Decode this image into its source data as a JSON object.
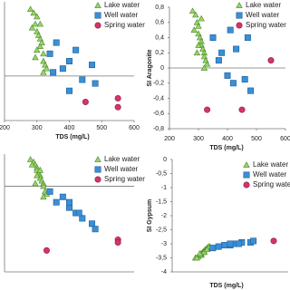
{
  "chart_data": [
    {
      "type": "scatter",
      "x_label": "TDS (mg/L)",
      "xlim": [
        200,
        600
      ],
      "xticks": [
        200,
        300,
        400,
        500,
        600
      ],
      "ylim": [
        -0.6,
        1.0
      ],
      "series": [
        {
          "name": "Lake water",
          "color": "#9bd36b",
          "x": [
            280,
            290,
            295,
            300,
            300,
            305,
            310,
            310,
            315,
            320,
            320,
            325,
            330,
            300,
            285,
            310,
            295,
            320
          ],
          "values": [
            0.9,
            0.85,
            0.7,
            0.8,
            0.6,
            0.55,
            0.5,
            0.4,
            0.45,
            0.3,
            0.2,
            0.15,
            0.1,
            0.35,
            0.65,
            0.7,
            0.25,
            0.05
          ]
        },
        {
          "name": "Well water",
          "color": "#3a8fd6",
          "x": [
            340,
            360,
            380,
            400,
            420,
            440,
            470,
            480,
            400,
            350
          ],
          "values": [
            0.3,
            0.45,
            0.1,
            0.2,
            0.35,
            -0.05,
            0.15,
            -0.1,
            -0.2,
            0.05
          ]
        },
        {
          "name": "Spring water",
          "color": "#d6336c",
          "x": [
            450,
            550,
            550
          ],
          "values": [
            -0.35,
            -0.3,
            -0.42
          ]
        }
      ]
    },
    {
      "type": "scatter",
      "x_label": "TDS (mg/L)",
      "y_label": "SI Aragonite",
      "xlim": [
        200,
        600
      ],
      "xticks": [
        200,
        300,
        400,
        500,
        600
      ],
      "ylim": [
        -0.8,
        0.8
      ],
      "yticks": [
        {
          "value": 0.8,
          "label": "0,8"
        },
        {
          "value": 0.6,
          "label": "0,6"
        },
        {
          "value": 0.4,
          "label": "0,4"
        },
        {
          "value": 0.2,
          "label": "0,2"
        },
        0,
        {
          "value": -0.2,
          "label": "-0,2"
        },
        {
          "value": -0.4,
          "label": "-0,4"
        },
        {
          "value": -0.6,
          "label": "-0,6"
        },
        {
          "value": -0.8,
          "label": "-0,8"
        }
      ],
      "series": [
        {
          "name": "Lake water",
          "color": "#9bd36b",
          "x": [
            280,
            290,
            295,
            300,
            300,
            305,
            310,
            310,
            315,
            320,
            320,
            325,
            330,
            300,
            285,
            310,
            295,
            320
          ],
          "values": [
            0.75,
            0.7,
            0.6,
            0.55,
            0.45,
            0.4,
            0.35,
            0.3,
            0.25,
            0.2,
            0.15,
            0.1,
            0.05,
            0.3,
            0.5,
            0.65,
            0.2,
            0.0
          ]
        },
        {
          "name": "Well water",
          "color": "#3a8fd6",
          "x": [
            350,
            380,
            410,
            430,
            470,
            400,
            420,
            460,
            480,
            370
          ],
          "values": [
            0.4,
            0.2,
            0.5,
            0.25,
            0.4,
            -0.1,
            -0.2,
            -0.15,
            -0.3,
            0.1
          ]
        },
        {
          "name": "Spring water",
          "color": "#d6336c",
          "x": [
            330,
            450,
            550
          ],
          "values": [
            -0.55,
            -0.55,
            0.1
          ]
        }
      ]
    },
    {
      "type": "scatter",
      "xlim": [
        200,
        600
      ],
      "ylim": [
        -1.6,
        0.6
      ],
      "series": [
        {
          "name": "Lake water",
          "color": "#9bd36b",
          "x": [
            280,
            290,
            295,
            300,
            300,
            305,
            310,
            310,
            315,
            320,
            320,
            325,
            330,
            300,
            285,
            310,
            295,
            320
          ],
          "values": [
            0.5,
            0.45,
            0.4,
            0.35,
            0.3,
            0.25,
            0.2,
            0.15,
            0.1,
            0.05,
            0.0,
            -0.1,
            -0.15,
            0.2,
            0.4,
            0.3,
            0.05,
            -0.2
          ]
        },
        {
          "name": "Well water",
          "color": "#3a8fd6",
          "x": [
            340,
            360,
            380,
            400,
            420,
            440,
            470,
            480,
            400,
            430
          ],
          "values": [
            -0.1,
            -0.3,
            -0.2,
            -0.4,
            -0.5,
            -0.6,
            -0.7,
            -0.8,
            -0.3,
            -0.5
          ]
        },
        {
          "name": "Spring water",
          "color": "#d6336c",
          "x": [
            330,
            550,
            550
          ],
          "values": [
            -1.2,
            -1.0,
            -1.05
          ]
        }
      ]
    },
    {
      "type": "scatter",
      "x_label": "TDS (mg/L)",
      "y_label": "SI Gypsum",
      "xlim": [
        200,
        600
      ],
      "ylim": [
        -4,
        0
      ],
      "yticks": [
        0,
        {
          "value": -0.5,
          "label": "-0,5"
        },
        -1,
        {
          "value": -1.5,
          "label": "-1,5"
        },
        -2,
        {
          "value": -2.5,
          "label": "-2,5"
        },
        -3,
        {
          "value": -3.5,
          "label": "-3,5"
        },
        -4
      ],
      "series": [
        {
          "name": "Lake water",
          "color": "#9bd36b",
          "x": [
            280,
            290,
            295,
            300,
            300,
            305,
            310,
            310,
            315,
            320,
            320,
            325,
            330,
            300,
            285,
            310,
            295,
            320
          ],
          "values": [
            -3.5,
            -3.45,
            -3.4,
            -3.35,
            -3.4,
            -3.3,
            -3.3,
            -3.25,
            -3.2,
            -3.2,
            -3.15,
            -3.1,
            -3.1,
            -3.4,
            -3.5,
            -3.3,
            -3.35,
            -3.2
          ]
        },
        {
          "name": "Well water",
          "color": "#3a8fd6",
          "x": [
            340,
            360,
            380,
            400,
            420,
            440,
            470,
            480,
            400,
            430
          ],
          "values": [
            -3.15,
            -3.1,
            -3.05,
            -3.05,
            -3.0,
            -2.95,
            -2.95,
            -2.9,
            -3.0,
            -3.0
          ]
        },
        {
          "name": "Spring water",
          "color": "#d6336c",
          "x": [
            550
          ],
          "values": [
            -2.9
          ]
        }
      ]
    }
  ]
}
